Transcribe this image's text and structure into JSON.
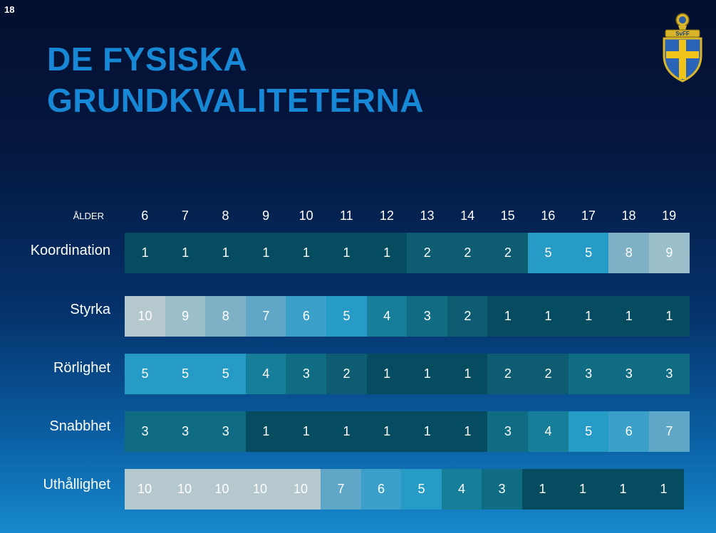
{
  "slide_number": "18",
  "title_lines": [
    "DE FYSISKA",
    "GRUNDKVALITETERNA"
  ],
  "age_label": "ÅLDER",
  "logo_text": "SvFF",
  "chart_data": {
    "type": "heatmap",
    "x": [
      6,
      7,
      8,
      9,
      10,
      11,
      12,
      13,
      14,
      15,
      16,
      17,
      18,
      19
    ],
    "x_tick_labels": [
      "6",
      "7",
      "8",
      "9",
      "10",
      "11",
      "12",
      "13",
      "14",
      "15",
      "16",
      "17",
      "18",
      "19"
    ],
    "xlabel": "ÅLDER",
    "value_range": [
      1,
      10
    ],
    "colors": {
      "1": "#064c60",
      "2": "#0d5c72",
      "3": "#106c83",
      "4": "#167e98",
      "5": "#269bc6",
      "6": "#3aa0c9",
      "7": "#5fa6c7",
      "8": "#7fb1c6",
      "9": "#9bbfcb",
      "10": "#b4c8ce"
    },
    "rows": [
      {
        "label": "Koordination",
        "values": [
          1,
          1,
          1,
          1,
          1,
          1,
          1,
          2,
          2,
          2,
          5,
          5,
          8,
          9
        ]
      },
      {
        "label": "Styrka",
        "values": [
          10,
          9,
          8,
          7,
          6,
          5,
          4,
          3,
          2,
          1,
          1,
          1,
          1,
          1
        ]
      },
      {
        "label": "Rörlighet",
        "values": [
          5,
          5,
          5,
          4,
          3,
          2,
          1,
          1,
          1,
          2,
          2,
          3,
          3,
          3
        ]
      },
      {
        "label": "Snabbhet",
        "values": [
          3,
          3,
          3,
          1,
          1,
          1,
          1,
          1,
          1,
          3,
          4,
          5,
          6,
          7
        ]
      },
      {
        "label": "Uthållighet",
        "values": [
          10,
          10,
          10,
          10,
          10,
          7,
          6,
          5,
          4,
          3,
          1,
          1,
          1,
          1
        ]
      }
    ]
  }
}
